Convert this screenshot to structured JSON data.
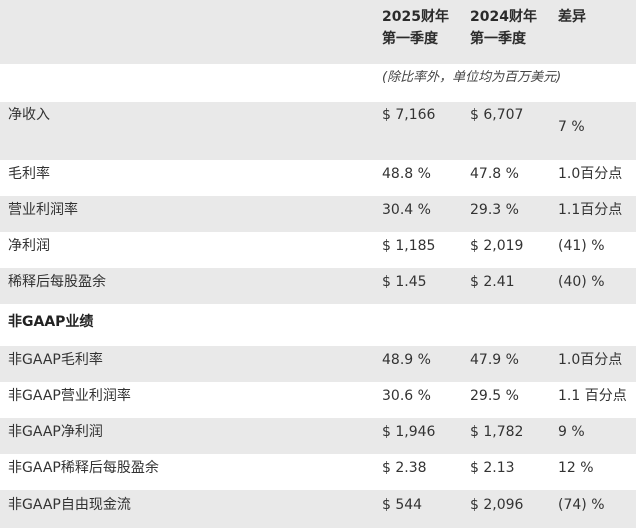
{
  "header": {
    "col1": [
      "2025财年",
      "第一季度"
    ],
    "col2": [
      "2024财年",
      "第一季度"
    ],
    "col3": "差异"
  },
  "unit_note": "(除比率外，单位均为百万美元)",
  "rows": [
    {
      "label": "净收入",
      "v1": "$ 7,166",
      "v2": "$ 6,707",
      "diff": "7 %"
    },
    {
      "label": "毛利率",
      "v1": "48.8 %",
      "v2": "47.8 %",
      "diff": "1.0百分点"
    },
    {
      "label": "营业利润率",
      "v1": "30.4 %",
      "v2": "29.3 %",
      "diff": "1.1百分点"
    },
    {
      "label": "净利润",
      "v1": "$ 1,185",
      "v2": "$ 2,019",
      "diff": "(41) %"
    },
    {
      "label": "稀释后每股盈余",
      "v1": "$ 1.45",
      "v2": "$ 2.41",
      "diff": "(40) %"
    }
  ],
  "section_title": "非GAAP业绩",
  "nongaap_rows": [
    {
      "label": "非GAAP毛利率",
      "v1": "48.9 %",
      "v2": "47.9 %",
      "diff": "1.0百分点"
    },
    {
      "label": "非GAAP营业利润率",
      "v1": "30.6 %",
      "v2": "29.5 %",
      "diff": "1.1 百分点"
    },
    {
      "label": "非GAAP净利润",
      "v1": "$ 1,946",
      "v2": "$ 1,782",
      "diff": "9 %"
    },
    {
      "label": "非GAAP稀释后每股盈余",
      "v1": "$ 2.38",
      "v2": "$ 2.13",
      "diff": "12 %"
    },
    {
      "label": "非GAAP自由现金流",
      "v1": "$ 544",
      "v2": "$ 2,096",
      "diff": "(74) %"
    }
  ]
}
